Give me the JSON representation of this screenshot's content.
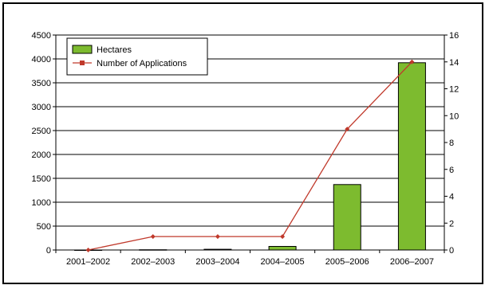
{
  "chart_data": {
    "type": "bar",
    "categories": [
      "2001–2002",
      "2002–2003",
      "2003–2004",
      "2004–2005",
      "2005–2006",
      "2006–2007"
    ],
    "series": [
      {
        "name": "Hectares",
        "type": "bar",
        "axis": "left",
        "values": [
          0,
          5,
          15,
          75,
          1370,
          3920
        ],
        "color": "#7dbb2f"
      },
      {
        "name": "Number of Applications",
        "type": "line",
        "axis": "right",
        "values": [
          0,
          1,
          1,
          1,
          9,
          14
        ],
        "color": "#c0392b"
      }
    ],
    "y_left": {
      "min": 0,
      "max": 4500,
      "step": 500,
      "ticks": [
        "0",
        "500",
        "1000",
        "1500",
        "2000",
        "2500",
        "3000",
        "3500",
        "4000",
        "4500"
      ]
    },
    "y_right": {
      "min": 0,
      "max": 16,
      "step": 2,
      "ticks": [
        "0",
        "2",
        "4",
        "6",
        "8",
        "10",
        "12",
        "14",
        "16"
      ]
    },
    "grid": true,
    "legend": {
      "placement": "top-left",
      "entries": [
        "Hectares",
        "Number of Applications"
      ]
    }
  }
}
